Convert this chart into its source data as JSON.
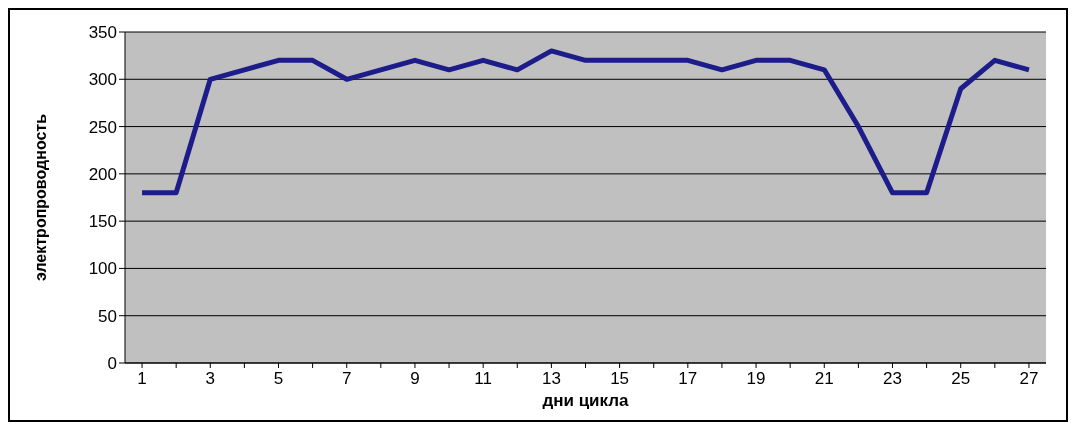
{
  "chart_data": {
    "type": "line",
    "xlabel": "дни цикла",
    "ylabel": "электропроводность",
    "x": [
      1,
      2,
      3,
      4,
      5,
      6,
      7,
      8,
      9,
      10,
      11,
      12,
      13,
      14,
      15,
      16,
      17,
      18,
      19,
      20,
      21,
      22,
      23,
      24,
      25,
      26,
      27
    ],
    "xlim": [
      0.5,
      27.5
    ],
    "xticks": [
      1,
      {
        "value": 2,
        "label": null
      },
      3,
      {
        "value": 4,
        "label": null
      },
      5,
      {
        "value": 6,
        "label": null
      },
      7,
      {
        "value": 8,
        "label": null
      },
      9,
      {
        "value": 10,
        "label": null
      },
      11,
      {
        "value": 12,
        "label": null
      },
      13,
      {
        "value": 14,
        "label": null
      },
      15,
      {
        "value": 16,
        "label": null
      },
      17,
      {
        "value": 18,
        "label": null
      },
      19,
      {
        "value": 20,
        "label": null
      },
      21,
      {
        "value": 22,
        "label": null
      },
      23,
      {
        "value": 24,
        "label": null
      },
      25,
      {
        "value": 26,
        "label": null
      },
      27
    ],
    "series": [
      {
        "color": "#1c1c8a",
        "values": [
          180,
          180,
          300,
          310,
          320,
          320,
          300,
          310,
          320,
          310,
          320,
          310,
          330,
          320,
          320,
          320,
          320,
          310,
          320,
          320,
          310,
          250,
          180,
          180,
          290,
          320,
          310
        ]
      }
    ],
    "ylim": [
      0,
      350
    ],
    "yticks": [
      0,
      50,
      100,
      150,
      200,
      250,
      300,
      350
    ],
    "grid": "y",
    "legend": false,
    "marker": "none",
    "line_style": "solid"
  }
}
